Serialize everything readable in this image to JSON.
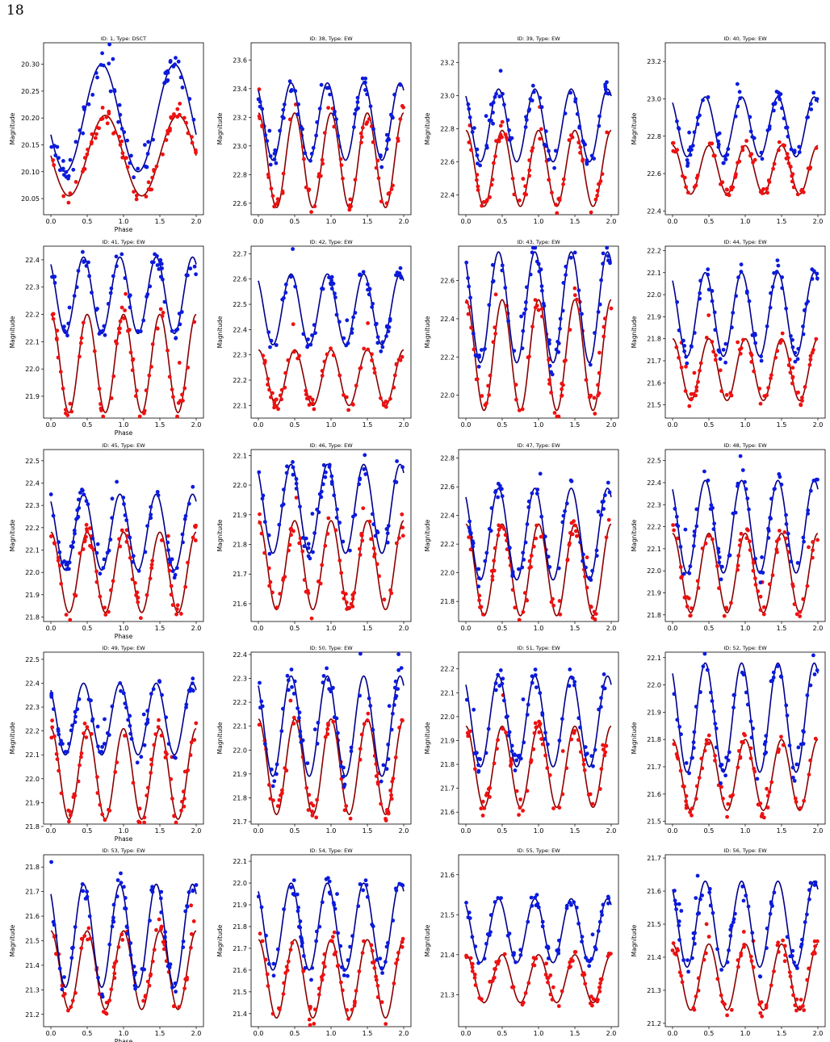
{
  "page_number": "18",
  "colors": {
    "red_points": "#ee1111",
    "red_fit": "#8b0000",
    "blue_points": "#0b1bdd",
    "blue_fit": "#00008b"
  },
  "chart_data": [
    {
      "type": "scatter",
      "title": "ID: 1, Type: DSCT",
      "xlabel": "Phase",
      "ylabel": "Magnitude",
      "xlim": [
        -0.1,
        2.1
      ],
      "ylim": [
        20.34,
        20.02
      ],
      "xticks": [
        "0.0",
        "0.5",
        "1.0",
        "1.5",
        "2.0"
      ],
      "yticks": [
        "20.05",
        "20.10",
        "20.15",
        "20.20",
        "20.25",
        "20.30"
      ],
      "series": [
        {
          "color": "red",
          "base": 20.13,
          "amp": 0.075,
          "n": 1
        },
        {
          "color": "blue",
          "base": 20.2,
          "amp": 0.1,
          "n": 1
        }
      ]
    },
    {
      "type": "scatter",
      "title": "ID: 38, Type: EW",
      "xlabel": "",
      "ylabel": "Magnitude",
      "xlim": [
        -0.1,
        2.1
      ],
      "ylim": [
        23.72,
        22.52
      ],
      "xticks": [
        "0.0",
        "0.5",
        "1.0",
        "1.5",
        "2.0"
      ],
      "yticks": [
        "22.6",
        "22.8",
        "23.0",
        "23.2",
        "23.4",
        "23.6"
      ],
      "series": [
        {
          "color": "red",
          "base": 22.9,
          "amp": 0.33,
          "n": 2
        },
        {
          "color": "blue",
          "base": 23.17,
          "amp": 0.27,
          "n": 2
        }
      ]
    },
    {
      "type": "scatter",
      "title": "ID: 39, Type: EW",
      "xlabel": "",
      "ylabel": "Magnitude",
      "xlim": [
        -0.1,
        2.1
      ],
      "ylim": [
        23.32,
        22.28
      ],
      "xticks": [
        "0.0",
        "0.5",
        "1.0",
        "1.5",
        "2.0"
      ],
      "yticks": [
        "22.4",
        "22.6",
        "22.8",
        "23.0",
        "23.2"
      ],
      "series": [
        {
          "color": "red",
          "base": 22.56,
          "amp": 0.23,
          "n": 2
        },
        {
          "color": "blue",
          "base": 22.82,
          "amp": 0.22,
          "n": 2
        }
      ]
    },
    {
      "type": "scatter",
      "title": "ID: 40, Type: EW",
      "xlabel": "",
      "ylabel": "Magnitude",
      "xlim": [
        -0.1,
        2.1
      ],
      "ylim": [
        23.3,
        22.38
      ],
      "xticks": [
        "0.0",
        "0.5",
        "1.0",
        "1.5",
        "2.0"
      ],
      "yticks": [
        "22.4",
        "22.6",
        "22.8",
        "23.0",
        "23.2"
      ],
      "series": [
        {
          "color": "red",
          "base": 22.62,
          "amp": 0.13,
          "n": 2
        },
        {
          "color": "blue",
          "base": 22.85,
          "amp": 0.16,
          "n": 2
        }
      ]
    },
    {
      "type": "scatter",
      "title": "ID: 41, Type: EW",
      "xlabel": "Phase",
      "ylabel": "Magnitude",
      "xlim": [
        -0.1,
        2.1
      ],
      "ylim": [
        22.45,
        21.82
      ],
      "xticks": [
        "0.0",
        "0.5",
        "1.0",
        "1.5",
        "2.0"
      ],
      "yticks": [
        "21.9",
        "22.0",
        "22.1",
        "22.2",
        "22.3",
        "22.4"
      ],
      "series": [
        {
          "color": "red",
          "base": 22.02,
          "amp": 0.18,
          "n": 2
        },
        {
          "color": "blue",
          "base": 22.27,
          "amp": 0.14,
          "n": 2
        }
      ]
    },
    {
      "type": "scatter",
      "title": "ID: 42, Type: EW",
      "xlabel": "",
      "ylabel": "Magnitude",
      "xlim": [
        -0.1,
        2.1
      ],
      "ylim": [
        22.73,
        22.05
      ],
      "xticks": [
        "0.0",
        "0.5",
        "1.0",
        "1.5",
        "2.0"
      ],
      "yticks": [
        "22.1",
        "22.2",
        "22.3",
        "22.4",
        "22.5",
        "22.6",
        "22.7"
      ],
      "series": [
        {
          "color": "red",
          "base": 22.21,
          "amp": 0.11,
          "n": 2
        },
        {
          "color": "blue",
          "base": 22.48,
          "amp": 0.14,
          "n": 2
        }
      ]
    },
    {
      "type": "scatter",
      "title": "ID: 43, Type: EW",
      "xlabel": "",
      "ylabel": "Magnitude",
      "xlim": [
        -0.1,
        2.1
      ],
      "ylim": [
        22.78,
        21.88
      ],
      "xticks": [
        "0.0",
        "0.5",
        "1.0",
        "1.5",
        "2.0"
      ],
      "yticks": [
        "22.0",
        "22.2",
        "22.4",
        "22.6"
      ],
      "series": [
        {
          "color": "red",
          "base": 22.21,
          "amp": 0.29,
          "n": 2
        },
        {
          "color": "blue",
          "base": 22.46,
          "amp": 0.29,
          "n": 2
        }
      ]
    },
    {
      "type": "scatter",
      "title": "ID: 44, Type: EW",
      "xlabel": "",
      "ylabel": "Magnitude",
      "xlim": [
        -0.1,
        2.1
      ],
      "ylim": [
        22.22,
        21.44
      ],
      "xticks": [
        "0.0",
        "0.5",
        "1.0",
        "1.5",
        "2.0"
      ],
      "yticks": [
        "21.5",
        "21.6",
        "21.7",
        "21.8",
        "21.9",
        "22.0",
        "22.1",
        "22.2"
      ],
      "series": [
        {
          "color": "red",
          "base": 21.66,
          "amp": 0.14,
          "n": 2
        },
        {
          "color": "blue",
          "base": 21.91,
          "amp": 0.19,
          "n": 2
        }
      ]
    },
    {
      "type": "scatter",
      "title": "ID: 45, Type: EW",
      "xlabel": "Phase",
      "ylabel": "Magnitude",
      "xlim": [
        -0.1,
        2.1
      ],
      "ylim": [
        22.55,
        21.78
      ],
      "xticks": [
        "0.0",
        "0.5",
        "1.0",
        "1.5",
        "2.0"
      ],
      "yticks": [
        "21.8",
        "21.9",
        "22.0",
        "22.1",
        "22.2",
        "22.3",
        "22.4",
        "22.5"
      ],
      "series": [
        {
          "color": "red",
          "base": 22.0,
          "amp": 0.18,
          "n": 2
        },
        {
          "color": "blue",
          "base": 22.18,
          "amp": 0.17,
          "n": 2
        }
      ]
    },
    {
      "type": "scatter",
      "title": "ID: 46, Type: EW",
      "xlabel": "",
      "ylabel": "Magnitude",
      "xlim": [
        -0.1,
        2.1
      ],
      "ylim": [
        22.12,
        21.54
      ],
      "xticks": [
        "0.0",
        "0.5",
        "1.0",
        "1.5",
        "2.0"
      ],
      "yticks": [
        "21.6",
        "21.7",
        "21.8",
        "21.9",
        "22.0",
        "22.1"
      ],
      "series": [
        {
          "color": "red",
          "base": 21.73,
          "amp": 0.15,
          "n": 2
        },
        {
          "color": "blue",
          "base": 21.92,
          "amp": 0.15,
          "n": 2
        }
      ]
    },
    {
      "type": "scatter",
      "title": "ID: 47, Type: EW",
      "xlabel": "",
      "ylabel": "Magnitude",
      "xlim": [
        -0.1,
        2.1
      ],
      "ylim": [
        22.86,
        21.66
      ],
      "xticks": [
        "0.0",
        "0.5",
        "1.0",
        "1.5",
        "2.0"
      ],
      "yticks": [
        "21.8",
        "22.0",
        "22.2",
        "22.4",
        "22.6",
        "22.8"
      ],
      "series": [
        {
          "color": "red",
          "base": 22.02,
          "amp": 0.32,
          "n": 2
        },
        {
          "color": "blue",
          "base": 22.27,
          "amp": 0.32,
          "n": 2
        }
      ]
    },
    {
      "type": "scatter",
      "title": "ID: 48, Type: EW",
      "xlabel": "",
      "ylabel": "Magnitude",
      "xlim": [
        -0.1,
        2.1
      ],
      "ylim": [
        22.55,
        21.77
      ],
      "xticks": [
        "0.0",
        "0.5",
        "1.0",
        "1.5",
        "2.0"
      ],
      "yticks": [
        "21.8",
        "21.9",
        "22.0",
        "22.1",
        "22.2",
        "22.3",
        "22.4",
        "22.5"
      ],
      "series": [
        {
          "color": "red",
          "base": 21.99,
          "amp": 0.18,
          "n": 2
        },
        {
          "color": "blue",
          "base": 22.2,
          "amp": 0.21,
          "n": 2
        }
      ]
    },
    {
      "type": "scatter",
      "title": "ID: 49, Type: EW",
      "xlabel": "Phase",
      "ylabel": "Magnitude",
      "xlim": [
        -0.1,
        2.1
      ],
      "ylim": [
        22.53,
        21.81
      ],
      "xticks": [
        "0.0",
        "0.5",
        "1.0",
        "1.5",
        "2.0"
      ],
      "yticks": [
        "21.8",
        "21.9",
        "22.0",
        "22.1",
        "22.2",
        "22.3",
        "22.4",
        "22.5"
      ],
      "series": [
        {
          "color": "red",
          "base": 22.02,
          "amp": 0.19,
          "n": 2
        },
        {
          "color": "blue",
          "base": 22.25,
          "amp": 0.15,
          "n": 2
        }
      ]
    },
    {
      "type": "scatter",
      "title": "ID: 50, Type: EW",
      "xlabel": "",
      "ylabel": "Magnitude",
      "xlim": [
        -0.1,
        2.1
      ],
      "ylim": [
        22.41,
        21.69
      ],
      "xticks": [
        "0.0",
        "0.5",
        "1.0",
        "1.5",
        "2.0"
      ],
      "yticks": [
        "21.7",
        "21.8",
        "21.9",
        "22.0",
        "22.1",
        "22.2",
        "22.3",
        "22.4"
      ],
      "series": [
        {
          "color": "red",
          "base": 21.93,
          "amp": 0.2,
          "n": 2
        },
        {
          "color": "blue",
          "base": 22.1,
          "amp": 0.21,
          "n": 2
        }
      ]
    },
    {
      "type": "scatter",
      "title": "ID: 51, Type: EW",
      "xlabel": "",
      "ylabel": "Magnitude",
      "xlim": [
        -0.1,
        2.1
      ],
      "ylim": [
        22.27,
        21.55
      ],
      "xticks": [
        "0.0",
        "0.5",
        "1.0",
        "1.5",
        "2.0"
      ],
      "yticks": [
        "21.6",
        "21.7",
        "21.8",
        "21.9",
        "22.0",
        "22.1",
        "22.2"
      ],
      "series": [
        {
          "color": "red",
          "base": 21.79,
          "amp": 0.17,
          "n": 2
        },
        {
          "color": "blue",
          "base": 21.98,
          "amp": 0.19,
          "n": 2
        }
      ]
    },
    {
      "type": "scatter",
      "title": "ID: 52, Type: EW",
      "xlabel": "",
      "ylabel": "Magnitude",
      "xlim": [
        -0.1,
        2.1
      ],
      "ylim": [
        22.12,
        21.49
      ],
      "xticks": [
        "0.0",
        "0.5",
        "1.0",
        "1.5",
        "2.0"
      ],
      "yticks": [
        "21.5",
        "21.6",
        "21.7",
        "21.8",
        "21.9",
        "22.0",
        "22.1"
      ],
      "series": [
        {
          "color": "red",
          "base": 21.67,
          "amp": 0.13,
          "n": 2
        },
        {
          "color": "blue",
          "base": 21.88,
          "amp": 0.2,
          "n": 2
        }
      ]
    },
    {
      "type": "scatter",
      "title": "ID: 53, Type: EW",
      "xlabel": "Phase",
      "ylabel": "Magnitude",
      "xlim": [
        -0.1,
        2.1
      ],
      "ylim": [
        21.85,
        21.15
      ],
      "xticks": [
        "0.0",
        "0.5",
        "1.0",
        "1.5",
        "2.0"
      ],
      "yticks": [
        "21.2",
        "21.3",
        "21.4",
        "21.5",
        "21.6",
        "21.7",
        "21.8"
      ],
      "series": [
        {
          "color": "red",
          "base": 21.38,
          "amp": 0.16,
          "n": 2
        },
        {
          "color": "blue",
          "base": 21.52,
          "amp": 0.21,
          "n": 2
        }
      ]
    },
    {
      "type": "scatter",
      "title": "ID: 54, Type: EW",
      "xlabel": "",
      "ylabel": "Magnitude",
      "xlim": [
        -0.1,
        2.1
      ],
      "ylim": [
        22.13,
        21.34
      ],
      "xticks": [
        "0.0",
        "0.5",
        "1.0",
        "1.5",
        "2.0"
      ],
      "yticks": [
        "21.4",
        "21.5",
        "21.6",
        "21.7",
        "21.8",
        "21.9",
        "22.0",
        "22.1"
      ],
      "series": [
        {
          "color": "red",
          "base": 21.56,
          "amp": 0.18,
          "n": 2
        },
        {
          "color": "blue",
          "base": 21.8,
          "amp": 0.2,
          "n": 2
        }
      ]
    },
    {
      "type": "scatter",
      "title": "ID: 55, Type: EW",
      "xlabel": "",
      "ylabel": "Magnitude",
      "xlim": [
        -0.1,
        2.1
      ],
      "ylim": [
        21.65,
        21.22
      ],
      "xticks": [
        "0.0",
        "0.5",
        "1.0",
        "1.5",
        "2.0"
      ],
      "yticks": [
        "21.3",
        "21.4",
        "21.5",
        "21.6"
      ],
      "series": [
        {
          "color": "red",
          "base": 21.34,
          "amp": 0.06,
          "n": 2
        },
        {
          "color": "blue",
          "base": 21.46,
          "amp": 0.08,
          "n": 2
        }
      ]
    },
    {
      "type": "scatter",
      "title": "ID: 56, Type: EW",
      "xlabel": "",
      "ylabel": "Magnitude",
      "xlim": [
        -0.1,
        2.1
      ],
      "ylim": [
        21.71,
        21.19
      ],
      "xticks": [
        "0.0",
        "0.5",
        "1.0",
        "1.5",
        "2.0"
      ],
      "yticks": [
        "21.2",
        "21.3",
        "21.4",
        "21.5",
        "21.6",
        "21.7"
      ],
      "series": [
        {
          "color": "red",
          "base": 21.34,
          "amp": 0.1,
          "n": 2
        },
        {
          "color": "blue",
          "base": 21.5,
          "amp": 0.13,
          "n": 2
        }
      ]
    }
  ]
}
